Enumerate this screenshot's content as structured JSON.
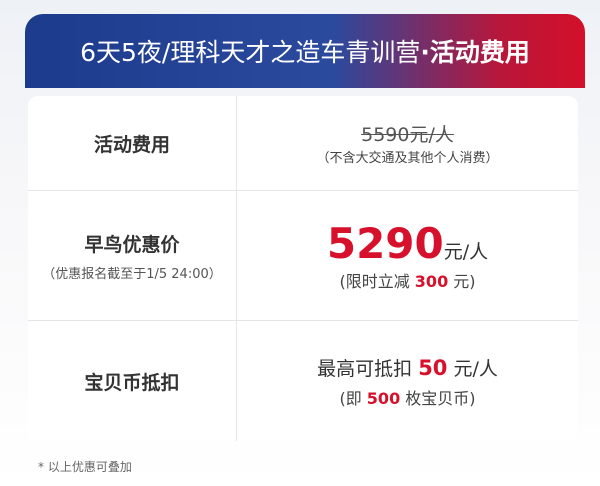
{
  "header": {
    "title": "6天5夜/理科天才之造车青训营",
    "highlight": "·活动费用"
  },
  "table": {
    "rows": [
      {
        "label": "活动费用",
        "price": "5590元/人",
        "note": "（不含大交通及其他个人消费）"
      },
      {
        "label": "早鸟优惠价",
        "sublabel": "（优惠报名截至于1/5 24:00）",
        "price": "5290",
        "unit": "元/人",
        "note_before": "(限时立减",
        "note_value": "300",
        "note_after": "元)"
      },
      {
        "label": "宝贝币抵扣",
        "line1_before": "最高可抵扣",
        "line1_value": "50",
        "line1_after": "元/人",
        "line2_before": "(即",
        "line2_value": "500",
        "line2_after": "枚宝贝币)"
      }
    ]
  },
  "footer": {
    "note": "* 以上优惠可叠加"
  }
}
